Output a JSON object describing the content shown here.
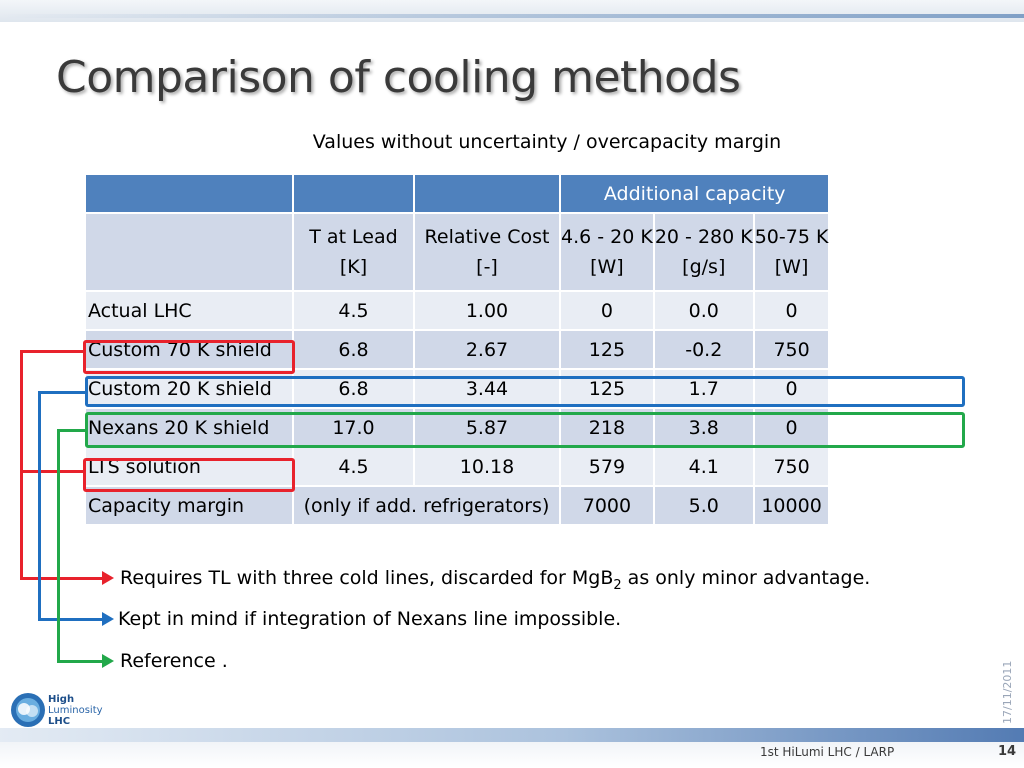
{
  "title": "Comparison of cooling methods",
  "subtitle": "Values without uncertainty / overcapacity margin",
  "table": {
    "header_span": "Additional capacity",
    "columns": [
      {
        "line1": "T at Lead",
        "line2": "[K]"
      },
      {
        "line1": "Relative Cost",
        "line2": "[-]"
      },
      {
        "line1": "4.6 - 20 K",
        "line2": "[W]"
      },
      {
        "line1": "20 - 280 K",
        "line2": "[g/s]"
      },
      {
        "line1": "50-75 K",
        "line2": "[W]"
      }
    ],
    "rows": [
      {
        "label": "Actual LHC",
        "values": [
          "4.5",
          "1.00",
          "0",
          "0.0",
          "0"
        ]
      },
      {
        "label": "Custom 70 K shield",
        "values": [
          "6.8",
          "2.67",
          "125",
          "-0.2",
          "750"
        ]
      },
      {
        "label": "Custom 20 K shield",
        "values": [
          "6.8",
          "3.44",
          "125",
          "1.7",
          "0"
        ]
      },
      {
        "label": "Nexans 20 K shield",
        "values": [
          "17.0",
          "5.87",
          "218",
          "3.8",
          "0"
        ]
      },
      {
        "label": "LTS solution",
        "values": [
          "4.5",
          "10.18",
          "579",
          "4.1",
          "750"
        ]
      }
    ],
    "margin_row": {
      "label": "Capacity margin",
      "note": "(only if add. refrigerators)",
      "values": [
        "7000",
        "5.0",
        "10000"
      ]
    }
  },
  "notes": {
    "red": {
      "text_before": "Requires TL with three cold lines, discarded for MgB",
      "subscript": "2",
      "text_after": " as only minor advantage."
    },
    "blue": "Kept in mind if integration of Nexans line impossible.",
    "green": "Reference ."
  },
  "footer": {
    "text": "1st  HiLumi LHC / LARP",
    "page": "14",
    "date": "17/11/2011"
  },
  "logo": {
    "line1": "High",
    "line2": "Luminosity",
    "line3": "LHC"
  },
  "colors": {
    "red": "#e8222c",
    "blue": "#1f6fc0",
    "green": "#22a84a",
    "header": "#4f81bd"
  }
}
